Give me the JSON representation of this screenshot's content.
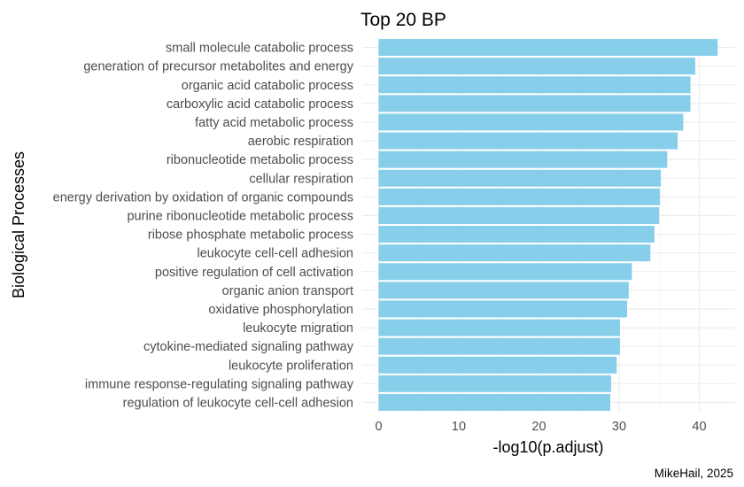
{
  "chart_data": {
    "type": "bar",
    "orientation": "horizontal",
    "title": "Top 20 BP",
    "xlabel": "-log10(p.adjust)",
    "ylabel": "Biological Processes",
    "caption": "MikeHail, 2025",
    "xlim": [
      0,
      43
    ],
    "xticks": [
      0,
      10,
      20,
      30,
      40
    ],
    "grid": true,
    "legend": "none",
    "bar_color": "#87CEEB",
    "categories": [
      "small molecule catabolic process",
      "generation of precursor metabolites and energy",
      "organic acid catabolic process",
      "carboxylic acid catabolic process",
      "fatty acid metabolic process",
      "aerobic respiration",
      "ribonucleotide metabolic process",
      "cellular respiration",
      "energy derivation by oxidation of organic compounds",
      "purine ribonucleotide metabolic process",
      "ribose phosphate metabolic process",
      "leukocyte cell-cell adhesion",
      "positive regulation of cell activation",
      "organic anion transport",
      "oxidative phosphorylation",
      "leukocyte migration",
      "cytokine-mediated signaling pathway",
      "leukocyte proliferation",
      "immune response-regulating signaling pathway",
      "regulation of leukocyte cell-cell adhesion"
    ],
    "values": [
      42.3,
      39.5,
      38.9,
      38.9,
      38.0,
      37.3,
      36.0,
      35.2,
      35.1,
      35.0,
      34.4,
      33.9,
      31.6,
      31.2,
      31.0,
      30.1,
      30.1,
      29.7,
      29.0,
      28.9
    ]
  }
}
